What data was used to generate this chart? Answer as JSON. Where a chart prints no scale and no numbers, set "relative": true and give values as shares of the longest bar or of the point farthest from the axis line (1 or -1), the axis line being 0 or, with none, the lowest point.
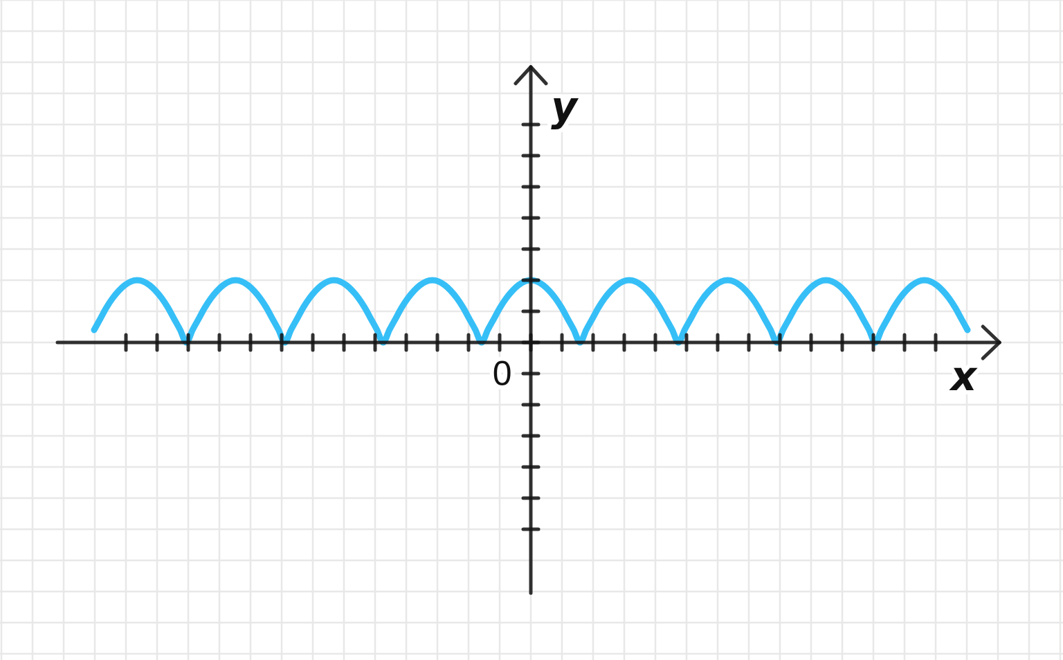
{
  "chart_data": {
    "type": "line",
    "xlabel": "x",
    "ylabel": "y",
    "annotations": [
      "0"
    ],
    "categories": [
      null,
      null,
      null,
      null,
      null,
      null,
      null,
      null,
      null,
      null,
      null,
      null,
      null,
      null,
      null,
      null,
      null,
      null,
      null,
      null,
      null,
      null,
      null,
      null,
      null,
      null,
      null,
      null,
      null,
      null,
      null,
      null,
      null,
      null,
      null,
      null,
      null,
      null,
      null,
      null,
      null,
      null,
      null,
      null,
      null,
      null,
      null,
      null,
      null,
      null,
      null,
      null,
      null,
      null,
      null,
      null,
      null,
      null,
      null,
      null,
      null,
      null,
      null,
      null,
      null,
      null,
      null,
      null,
      null,
      null,
      null,
      null,
      null,
      null,
      null,
      null,
      null,
      null,
      null,
      null,
      null,
      null,
      null,
      null,
      null,
      null,
      null,
      null,
      null,
      null,
      null,
      null,
      null,
      null,
      null,
      null,
      null,
      null,
      null,
      null,
      null,
      null,
      null,
      null,
      null,
      null,
      null,
      null,
      null,
      null,
      null,
      null,
      null,
      null,
      null,
      null,
      null,
      null,
      null,
      null,
      null,
      null,
      null,
      null,
      null,
      null,
      null,
      null,
      null,
      null,
      null,
      null,
      null,
      null,
      null,
      null,
      null,
      null,
      null,
      null,
      null,
      null,
      null
    ],
    "values": [
      0.2,
      0.38,
      0.56,
      0.71,
      0.83,
      0.92,
      0.98,
      1,
      0.98,
      0.92,
      0.83,
      0.71,
      0.56,
      0.38,
      0.2,
      0,
      0.2,
      0.38,
      0.56,
      0.71,
      0.83,
      0.92,
      0.98,
      1,
      0.98,
      0.92,
      0.83,
      0.71,
      0.56,
      0.38,
      0.2,
      0,
      0.2,
      0.38,
      0.56,
      0.71,
      0.83,
      0.92,
      0.98,
      1,
      0.98,
      0.92,
      0.83,
      0.71,
      0.56,
      0.38,
      0.2,
      0,
      0.2,
      0.38,
      0.56,
      0.71,
      0.83,
      0.92,
      0.98,
      1,
      0.98,
      0.92,
      0.83,
      0.71,
      0.56,
      0.38,
      0.2,
      0,
      0.2,
      0.38,
      0.56,
      0.71,
      0.83,
      0.92,
      0.98,
      1,
      0.98,
      0.92,
      0.83,
      0.71,
      0.56,
      0.38,
      0.2,
      0,
      0.2,
      0.38,
      0.56,
      0.71,
      0.83,
      0.92,
      0.98,
      1,
      0.98,
      0.92,
      0.83,
      0.71,
      0.56,
      0.38,
      0.2,
      0,
      0.2,
      0.38,
      0.56,
      0.71,
      0.83,
      0.92,
      0.98,
      1,
      0.98,
      0.92,
      0.83,
      0.71,
      0.56,
      0.38,
      0.2,
      0,
      0.2,
      0.38,
      0.56,
      0.71,
      0.83,
      0.92,
      0.98,
      1,
      0.98,
      0.92,
      0.83,
      0.71,
      0.56,
      0.38,
      0.2,
      0,
      0.2,
      0.38,
      0.56,
      0.71,
      0.83,
      0.92,
      0.98,
      1,
      0.98,
      0.92,
      0.83,
      0.71,
      0.56,
      0.38,
      0.2
    ],
    "color": "#36bff7",
    "relative": true,
    "grid": true,
    "marker": "none",
    "line_style": "solid",
    "tick_labels": false
  }
}
